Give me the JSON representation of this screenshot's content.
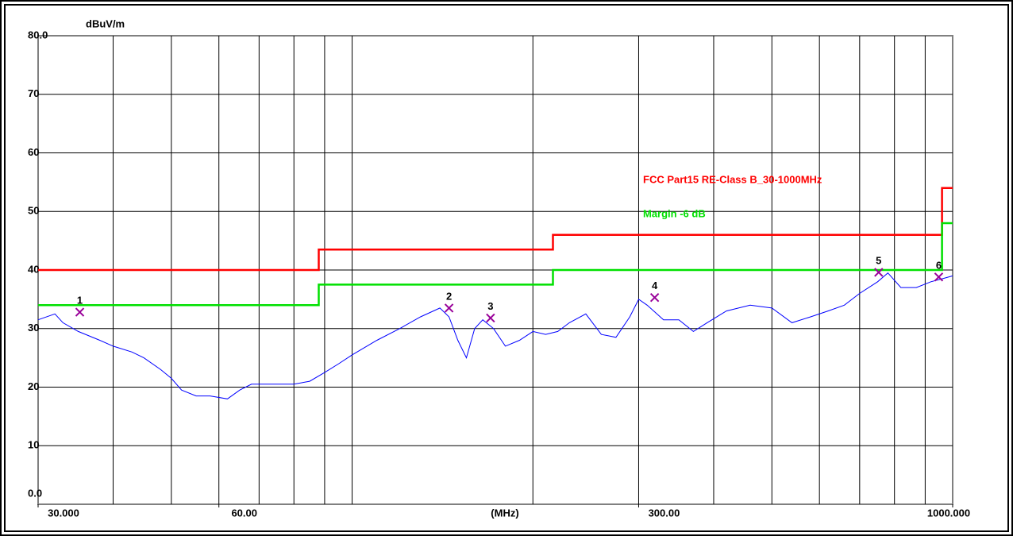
{
  "chart_data": {
    "type": "line",
    "y_label": "dBuV/m",
    "x_label": "(MHz)",
    "xscale": "log",
    "xlim": [
      30,
      1000
    ],
    "ylim": [
      0,
      80
    ],
    "xticks": [
      {
        "value": 30,
        "label": "30.000"
      },
      {
        "value": 60,
        "label": "60.00"
      },
      {
        "value": 300,
        "label": "300.00"
      },
      {
        "value": 1000,
        "label": "1000.000"
      }
    ],
    "xminorticks": [
      40,
      50,
      60,
      70,
      80,
      90,
      100,
      200,
      300,
      400,
      500,
      600,
      700,
      800,
      900
    ],
    "yticks": [
      {
        "value": 0,
        "label": "0.0"
      },
      10,
      20,
      30,
      40,
      50,
      60,
      70,
      {
        "value": 80,
        "label": "80.0"
      }
    ],
    "grid": true,
    "series": [
      {
        "name": "FCC Part15 RE-Class B_30-1000MHz",
        "color": "#ff0000",
        "x": [
          30,
          88,
          88,
          216,
          216,
          960,
          960,
          1000
        ],
        "values": [
          40,
          40,
          43.5,
          43.5,
          46,
          46,
          54,
          54
        ]
      },
      {
        "name": "Margin -6 dB",
        "color": "#00e000",
        "x": [
          30,
          88,
          88,
          216,
          216,
          960,
          960,
          1000
        ],
        "values": [
          34,
          34,
          37.5,
          37.5,
          40,
          40,
          48,
          48
        ]
      },
      {
        "color": "#0000ff",
        "x": [
          30,
          32,
          33,
          35,
          38,
          40,
          43,
          45,
          48,
          50,
          52,
          55,
          58,
          62,
          65,
          68,
          72,
          76,
          80,
          85,
          90,
          95,
          100,
          110,
          120,
          130,
          140,
          145,
          150,
          155,
          160,
          165,
          172,
          180,
          190,
          200,
          210,
          220,
          230,
          245,
          260,
          275,
          290,
          300,
          310,
          330,
          350,
          370,
          390,
          420,
          460,
          500,
          540,
          580,
          620,
          660,
          700,
          750,
          780,
          820,
          870,
          920,
          960,
          1000
        ],
        "values": [
          31.5,
          32.5,
          31,
          29.5,
          28,
          27,
          26,
          25,
          23,
          21.5,
          19.5,
          18.5,
          18.5,
          18,
          19.5,
          20.5,
          20.5,
          20.5,
          20.5,
          21,
          22.5,
          24,
          25.5,
          28,
          30,
          32,
          33.5,
          32,
          28,
          25,
          30,
          31.5,
          30,
          27,
          28,
          29.5,
          29,
          29.5,
          31,
          32.5,
          29,
          28.5,
          32,
          35,
          34,
          31.5,
          31.5,
          29.5,
          31,
          33,
          34,
          33.5,
          31,
          32,
          33,
          34,
          36,
          38,
          39.5,
          37,
          37,
          38,
          38.5,
          39
        ]
      }
    ],
    "markers": {
      "color": "#990099",
      "x": [
        35.2,
        145,
        170,
        319,
        753,
        948
      ],
      "values": [
        32.8,
        33.5,
        31.8,
        35.3,
        39.6,
        38.8
      ],
      "labels": [
        "1",
        "2",
        "3",
        "4",
        "5",
        "6"
      ]
    }
  }
}
